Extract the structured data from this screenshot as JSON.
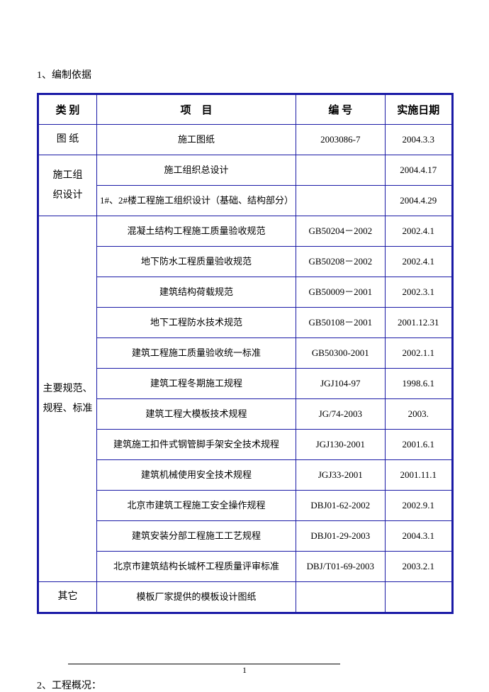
{
  "section1_title": "1、编制依据",
  "section2_title": "2、工程概况：",
  "page_number": "1",
  "headers": {
    "category": "类 别",
    "item": "项　目",
    "code": "编 号",
    "date": "实施日期"
  },
  "groups": [
    {
      "category": "图 纸",
      "rows": [
        {
          "item": "施工图纸",
          "code": "2003086-7",
          "date": "2004.3.3"
        }
      ]
    },
    {
      "category": "施工组\n织设计",
      "rows": [
        {
          "item": "施工组织总设计",
          "code": "",
          "date": "2004.4.17"
        },
        {
          "item": "1#、2#楼工程施工组织设计（基础、结构部分）",
          "code": "",
          "date": "2004.4.29"
        }
      ]
    },
    {
      "category": "主要规范、\n规程、标准",
      "rows": [
        {
          "item": "混凝土结构工程施工质量验收规范",
          "code": "GB50204－2002",
          "date": "2002.4.1"
        },
        {
          "item": "地下防水工程质量验收规范",
          "code": "GB50208－2002",
          "date": "2002.4.1"
        },
        {
          "item": "建筑结构荷载规范",
          "code": "GB50009－2001",
          "date": "2002.3.1"
        },
        {
          "item": "地下工程防水技术规范",
          "code": "GB50108－2001",
          "date": "2001.12.31"
        },
        {
          "item": "建筑工程施工质量验收统一标准",
          "code": "GB50300-2001",
          "date": "2002.1.1"
        },
        {
          "item": "建筑工程冬期施工规程",
          "code": "JGJ104-97",
          "date": "1998.6.1"
        },
        {
          "item": "建筑工程大模板技术规程",
          "code": "JG/74-2003",
          "date": "2003."
        },
        {
          "item": "建筑施工扣件式钢管脚手架安全技术规程",
          "code": "JGJ130-2001",
          "date": "2001.6.1"
        },
        {
          "item": "建筑机械使用安全技术规程",
          "code": "JGJ33-2001",
          "date": "2001.11.1"
        },
        {
          "item": "北京市建筑工程施工安全操作规程",
          "code": "DBJ01-62-2002",
          "date": "2002.9.1"
        },
        {
          "item": "建筑安装分部工程施工工艺规程",
          "code": "DBJ01-29-2003",
          "date": "2004.3.1"
        },
        {
          "item": "北京市建筑结构长城杯工程质量评审标准",
          "code": "DBJ/T01-69-2003",
          "date": "2003.2.1"
        }
      ]
    },
    {
      "category": "其它",
      "rows": [
        {
          "item": "模板厂家提供的模板设计图纸",
          "code": "",
          "date": ""
        }
      ]
    }
  ]
}
